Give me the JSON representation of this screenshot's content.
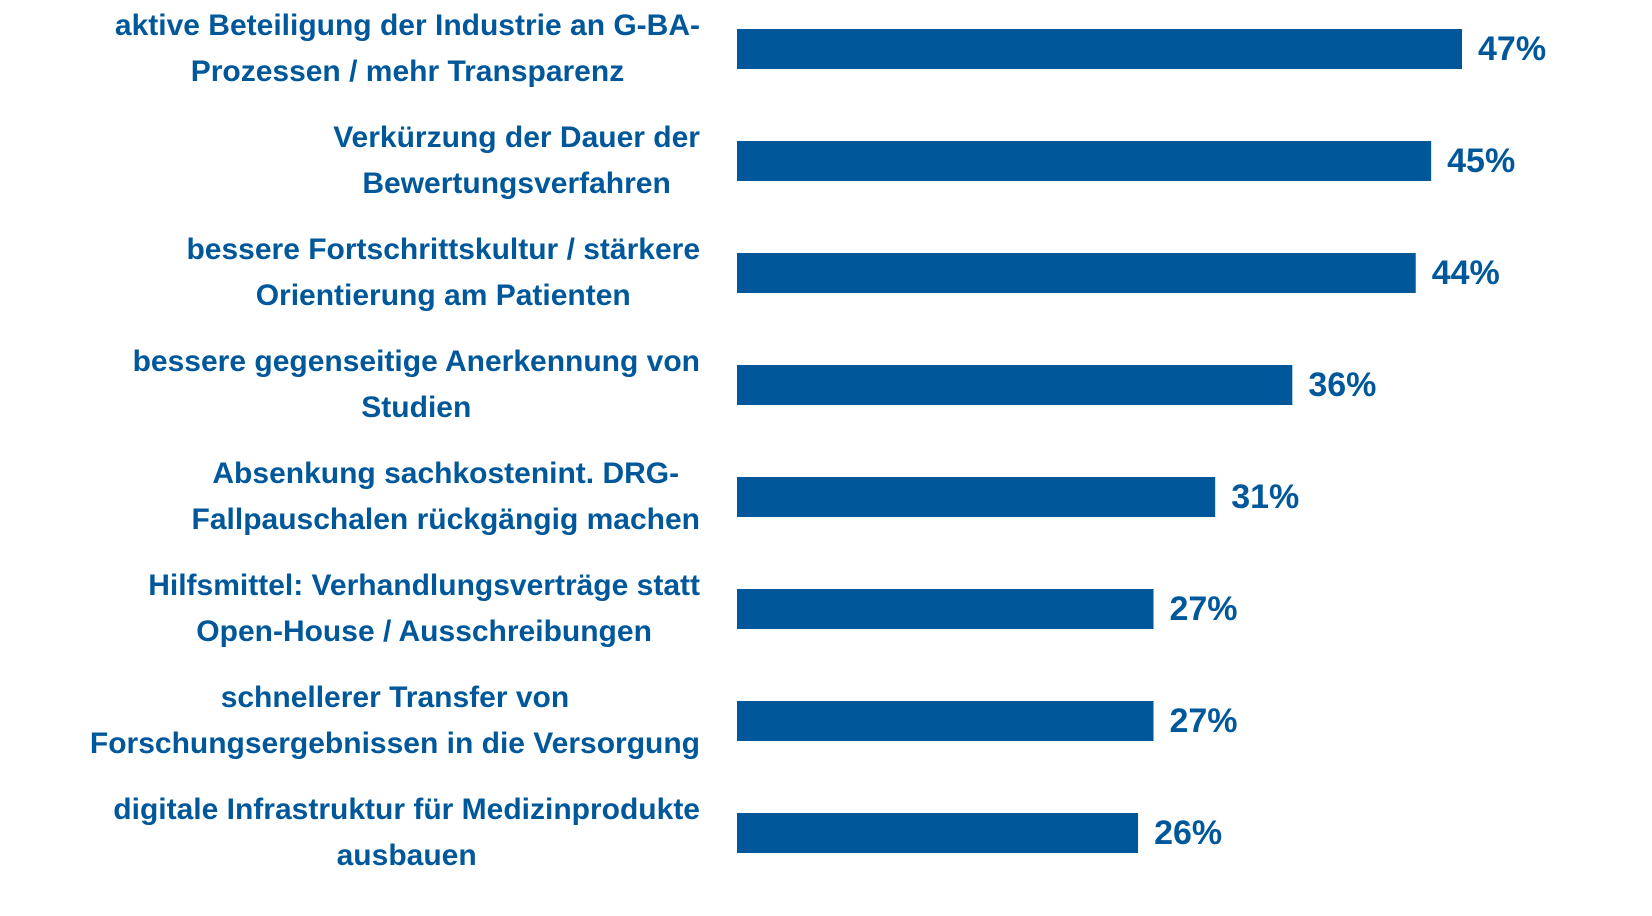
{
  "chart_data": {
    "type": "bar",
    "orientation": "horizontal",
    "color": "#00589b",
    "categories": [
      [
        "aktive Beteiligung der Industrie an G-BA-",
        "Prozessen / mehr Transparenz"
      ],
      [
        "Verkürzung der Dauer der",
        "Bewertungsverfahren"
      ],
      [
        "bessere Fortschrittskultur / stärkere",
        "Orientierung am Patienten"
      ],
      [
        "bessere gegenseitige Anerkennung von",
        "Studien"
      ],
      [
        "Absenkung sachkostenint. DRG-",
        "Fallpauschalen rückgängig machen"
      ],
      [
        "Hilfsmittel: Verhandlungsverträge statt",
        "Open-House / Ausschreibungen"
      ],
      [
        "schnellerer Transfer von",
        "Forschungsergebnissen in die Versorgung"
      ],
      [
        "digitale Infrastruktur für Medizinprodukte",
        "ausbauen"
      ]
    ],
    "values": [
      47,
      45,
      44,
      36,
      31,
      27,
      27,
      26
    ],
    "value_labels": [
      "47%",
      "45%",
      "44%",
      "36%",
      "31%",
      "27%",
      "27%",
      "26%"
    ]
  }
}
